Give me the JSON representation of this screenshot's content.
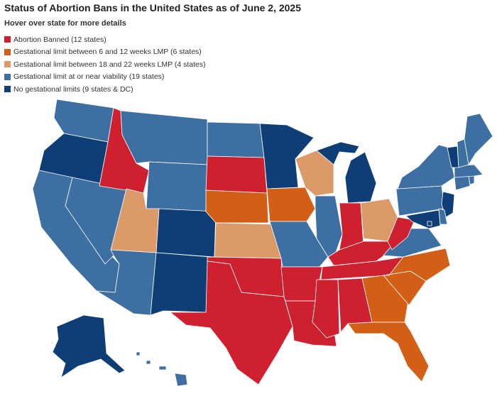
{
  "title": "Status of Abortion Bans in the United States as of June 2, 2025",
  "subtitle": "Hover over state for more details",
  "colors": {
    "banned": "#cf2030",
    "limit_6_12": "#d35f17",
    "limit_18_22": "#dc9a68",
    "viability": "#3d6fa3",
    "none": "#0e3e75"
  },
  "legend": [
    {
      "key": "banned",
      "label": "Abortion Banned (12 states)"
    },
    {
      "key": "limit_6_12",
      "label": "Gestational limit between 6 and 12 weeks LMP (6 states)"
    },
    {
      "key": "limit_18_22",
      "label": "Gestational limit between 18 and 22 weeks LMP (4 states)"
    },
    {
      "key": "viability",
      "label": "Gestational limit at or near viability (19 states)"
    },
    {
      "key": "none",
      "label": "No gestational limits (9 states & DC)"
    }
  ],
  "states": {
    "WA": "viability",
    "OR": "none",
    "CA": "viability",
    "NV": "viability",
    "ID": "banned",
    "MT": "viability",
    "WY": "viability",
    "UT": "limit_18_22",
    "AZ": "viability",
    "CO": "none",
    "NM": "none",
    "ND": "viability",
    "SD": "banned",
    "NE": "limit_6_12",
    "KS": "limit_18_22",
    "OK": "banned",
    "TX": "banned",
    "MN": "none",
    "IA": "limit_6_12",
    "MO": "viability",
    "AR": "banned",
    "LA": "banned",
    "WI": "limit_18_22",
    "IL": "viability",
    "MI": "none",
    "IN": "banned",
    "OH": "limit_18_22",
    "KY": "banned",
    "TN": "banned",
    "MS": "banned",
    "AL": "banned",
    "GA": "limit_6_12",
    "FL": "limit_6_12",
    "SC": "limit_6_12",
    "NC": "limit_6_12",
    "VA": "viability",
    "WV": "banned",
    "PA": "viability",
    "NY": "viability",
    "VT": "none",
    "NH": "viability",
    "ME": "viability",
    "MA": "viability",
    "RI": "viability",
    "CT": "viability",
    "NJ": "none",
    "DE": "viability",
    "MD": "none",
    "DC": "none",
    "AK": "none",
    "HI": "viability"
  }
}
